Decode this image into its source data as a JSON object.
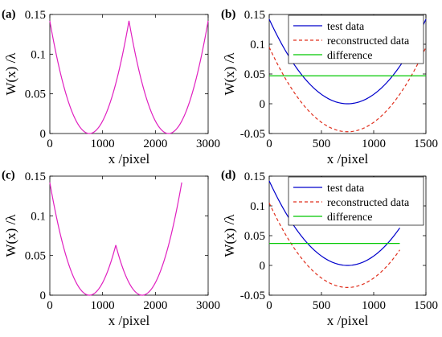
{
  "colors": {
    "magenta": "#e020c0",
    "blue": "#0000cc",
    "red": "#e0301e",
    "green": "#00c800"
  },
  "chart_data": [
    {
      "panel": "(a)",
      "type": "line",
      "xlabel": "x /pixel",
      "ylabel": "W(x) /λ",
      "xlim": [
        0,
        3000
      ],
      "ylim": [
        0,
        0.15
      ],
      "xticks": [
        0,
        1000,
        2000,
        3000
      ],
      "yticks": [
        0,
        0.05,
        0.1,
        0.15
      ],
      "xtick_labels": [
        "0",
        "1000",
        "2000",
        "3000"
      ],
      "ytick_labels": [
        "0",
        "0.05",
        "0.1",
        "0.15"
      ],
      "legend": null,
      "series": [
        {
          "color": "magenta",
          "dash": "solid",
          "kind": "parabola",
          "x_range": [
            0,
            1500
          ],
          "vertex": 750,
          "ymax": 0.142
        },
        {
          "color": "magenta",
          "dash": "solid",
          "kind": "parabola",
          "x_range": [
            1500,
            3000
          ],
          "vertex": 2250,
          "ymax": 0.142
        }
      ]
    },
    {
      "panel": "(b)",
      "type": "line",
      "xlabel": "x /pixel",
      "ylabel": "W(x) /λ",
      "xlim": [
        0,
        1500
      ],
      "ylim": [
        -0.05,
        0.15
      ],
      "xticks": [
        0,
        500,
        1000,
        1500
      ],
      "yticks": [
        -0.05,
        0,
        0.05,
        0.1,
        0.15
      ],
      "xtick_labels": [
        "0",
        "500",
        "1000",
        "1500"
      ],
      "ytick_labels": [
        "-0.05",
        "0",
        "0.05",
        "0.1",
        "0.15"
      ],
      "legend": {
        "position": "top-right",
        "entries": [
          {
            "name": "test data",
            "color": "blue",
            "dash": "solid"
          },
          {
            "name": "reconstructed data",
            "color": "red",
            "dash": "dashed"
          },
          {
            "name": "difference",
            "color": "green",
            "dash": "solid"
          }
        ]
      },
      "series": [
        {
          "name": "test data",
          "color": "blue",
          "dash": "solid",
          "kind": "parabola",
          "x_range": [
            0,
            1500
          ],
          "vertex": 750,
          "ymin": 0,
          "ymax": 0.142
        },
        {
          "name": "reconstructed data",
          "color": "red",
          "dash": "dashed",
          "kind": "parabola",
          "x_range": [
            0,
            1500
          ],
          "vertex": 750,
          "ymin": -0.047,
          "ymax": 0.095
        },
        {
          "name": "difference",
          "color": "green",
          "dash": "solid",
          "kind": "constant",
          "x_range": [
            0,
            1500
          ],
          "value": 0.047
        }
      ]
    },
    {
      "panel": "(c)",
      "type": "line",
      "xlabel": "x /pixel",
      "ylabel": "W(x) /λ",
      "xlim": [
        0,
        3000
      ],
      "ylim": [
        0,
        0.15
      ],
      "xticks": [
        0,
        1000,
        2000,
        3000
      ],
      "yticks": [
        0,
        0.05,
        0.1,
        0.15
      ],
      "xtick_labels": [
        "0",
        "1000",
        "2000",
        "3000"
      ],
      "ytick_labels": [
        "0",
        "0.05",
        "0.1",
        "0.15"
      ],
      "legend": null,
      "series": [
        {
          "color": "magenta",
          "dash": "solid",
          "kind": "parabola",
          "x_range": [
            0,
            1250
          ],
          "vertex": 750,
          "ymax": 0.142
        },
        {
          "color": "magenta",
          "dash": "solid",
          "kind": "parabola",
          "x_range": [
            1250,
            2500
          ],
          "vertex": 1750,
          "ymax": 0.142
        }
      ]
    },
    {
      "panel": "(d)",
      "type": "line",
      "xlabel": "x /pixel",
      "ylabel": "W(x) /λ",
      "xlim": [
        0,
        1500
      ],
      "ylim": [
        -0.05,
        0.15
      ],
      "xticks": [
        0,
        500,
        1000,
        1500
      ],
      "yticks": [
        -0.05,
        0,
        0.05,
        0.1,
        0.15
      ],
      "xtick_labels": [
        "0",
        "500",
        "1000",
        "1500"
      ],
      "ytick_labels": [
        "-0.05",
        "0",
        "0.05",
        "0.1",
        "0.15"
      ],
      "legend": {
        "position": "top-right",
        "entries": [
          {
            "name": "test data",
            "color": "blue",
            "dash": "solid"
          },
          {
            "name": "reconstructed data",
            "color": "red",
            "dash": "dashed"
          },
          {
            "name": "difference",
            "color": "green",
            "dash": "solid"
          }
        ]
      },
      "series": [
        {
          "name": "test data",
          "color": "blue",
          "dash": "solid",
          "kind": "parabola",
          "x_range": [
            0,
            1250
          ],
          "vertex": 750,
          "ymin": 0,
          "ymax": 0.142
        },
        {
          "name": "reconstructed data",
          "color": "red",
          "dash": "dashed",
          "kind": "parabola",
          "x_range": [
            0,
            1250
          ],
          "vertex": 750,
          "ymin": -0.037,
          "ymax": 0.105
        },
        {
          "name": "difference",
          "color": "green",
          "dash": "solid",
          "kind": "constant",
          "x_range": [
            0,
            1250
          ],
          "value": 0.037
        }
      ]
    }
  ]
}
